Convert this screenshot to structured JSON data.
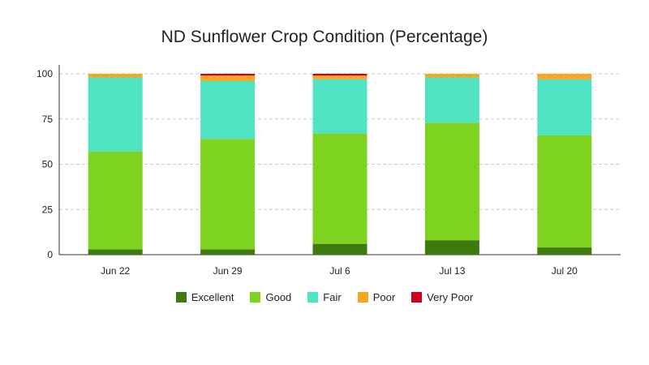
{
  "chart_data": {
    "type": "bar",
    "stacked": true,
    "title": "ND Sunflower Crop Condition (Percentage)",
    "xlabel": "",
    "ylabel": "",
    "ylim": [
      0,
      100
    ],
    "yticks": [
      0,
      25,
      50,
      75,
      100
    ],
    "grid": true,
    "legend_position": "bottom",
    "categories": [
      "Jun 22",
      "Jun 29",
      "Jul 6",
      "Jul 13",
      "Jul 20"
    ],
    "series": [
      {
        "name": "Excellent",
        "color": "#3f7a0f",
        "values": [
          3,
          3,
          6,
          8,
          4
        ]
      },
      {
        "name": "Good",
        "color": "#7ed321",
        "values": [
          54,
          61,
          61,
          65,
          62
        ]
      },
      {
        "name": "Fair",
        "color": "#50e3c2",
        "values": [
          41,
          32,
          30,
          25,
          31
        ]
      },
      {
        "name": "Poor",
        "color": "#f5a623",
        "values": [
          2,
          3,
          2,
          2,
          3
        ]
      },
      {
        "name": "Very Poor",
        "color": "#d0021b",
        "values": [
          0,
          1,
          1,
          0,
          0
        ]
      }
    ]
  }
}
